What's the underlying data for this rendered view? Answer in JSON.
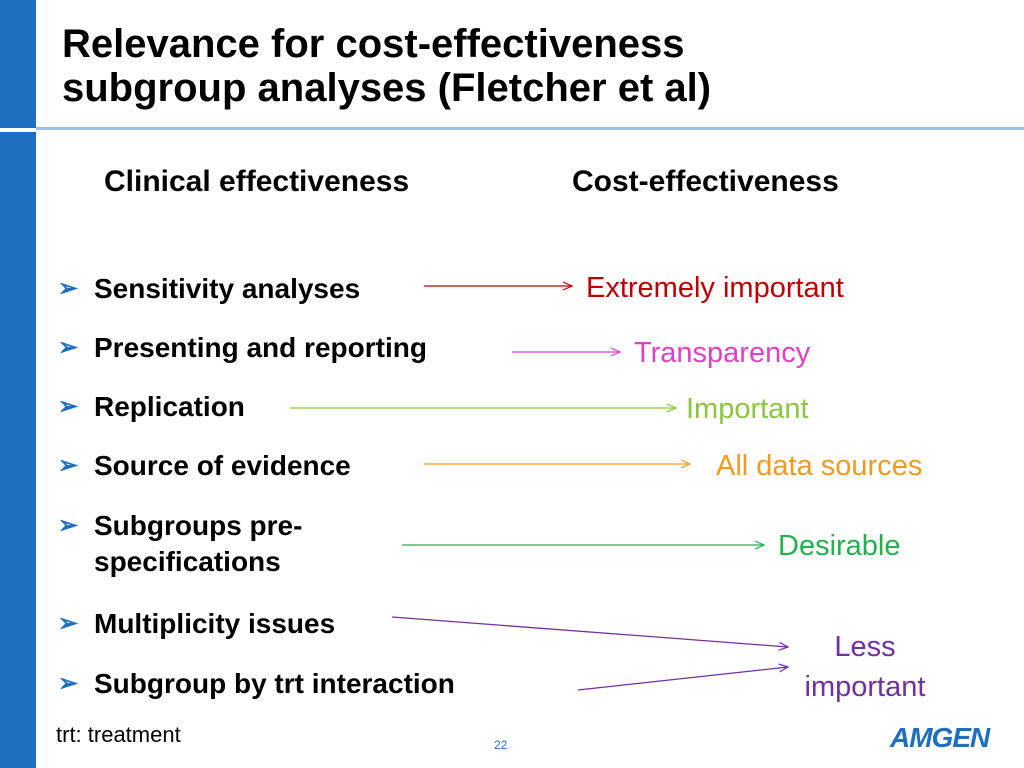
{
  "title": {
    "line1": "Relevance for cost-effectiveness",
    "line2": "subgroup analyses (Fletcher et al)"
  },
  "columns": {
    "left": "Clinical effectiveness",
    "right": "Cost-effectiveness"
  },
  "bullets": [
    {
      "text": "Sensitivity analyses"
    },
    {
      "text": "Presenting and reporting"
    },
    {
      "text": "Replication"
    },
    {
      "text": "Source of evidence"
    },
    {
      "text_line1": "Subgroups pre-",
      "text_line2": "specifications"
    },
    {
      "text": "Multiplicity issues"
    },
    {
      "text": "Subgroup by trt interaction"
    }
  ],
  "outcomes": [
    {
      "text": "Extremely important",
      "color": "#c00000"
    },
    {
      "text": "Transparency",
      "color": "#e040c8"
    },
    {
      "text": "Important",
      "color": "#8cc63e"
    },
    {
      "text": "All data sources",
      "color": "#f39a1e"
    },
    {
      "text": "Desirable",
      "color": "#22b14c"
    },
    {
      "text_line1": "Less",
      "text_line2": "important",
      "color": "#7030a0"
    }
  ],
  "bullet_glyph": "➢",
  "footnote": "trt: treatment",
  "page_number": "22",
  "logo_text": "AMGEN",
  "colors": {
    "accent": "#1e6fc0",
    "title_rule": "#9dc3e6"
  }
}
